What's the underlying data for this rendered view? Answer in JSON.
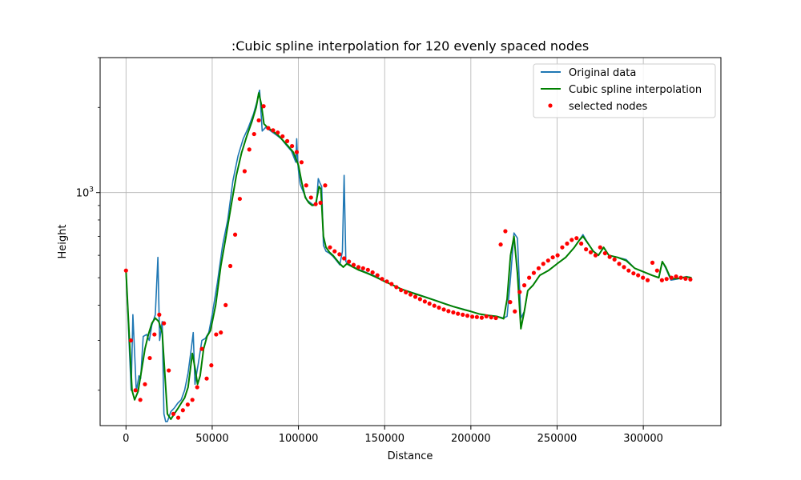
{
  "chart_data": {
    "type": "line",
    "title": ":Cubic spline interpolation for 120 evenly spaced nodes",
    "xlabel": "Distance",
    "ylabel": "Height",
    "xlim": [
      -15000,
      345000
    ],
    "ylim": [
      150,
      3000
    ],
    "yscale": "log",
    "grid": true,
    "legend_position": "top-right",
    "x_ticks": [
      0,
      50000,
      100000,
      150000,
      200000,
      250000,
      300000
    ],
    "x_tick_labels": [
      "0",
      "50000",
      "100000",
      "150000",
      "200000",
      "250000",
      "300000"
    ],
    "y_ticks_major": [
      1000
    ],
    "y_tick_labels": [
      "10^3"
    ],
    "series": [
      {
        "name": "Original data",
        "kind": "line",
        "color": "#1f77b4",
        "x": [
          0,
          3000,
          4000,
          6000,
          7500,
          8500,
          10000,
          12000,
          13500,
          15000,
          17000,
          18500,
          19500,
          21000,
          22000,
          23000,
          24000,
          26000,
          28000,
          30000,
          32000,
          34000,
          36000,
          38000,
          39000,
          40000,
          41000,
          42000,
          44000,
          46000,
          48000,
          50000,
          53000,
          56000,
          59000,
          62000,
          65000,
          68000,
          71000,
          74000,
          76000,
          77000,
          77500,
          79000,
          81000,
          84000,
          87000,
          90000,
          93000,
          96000,
          98500,
          99000,
          99500,
          100000,
          101000,
          103000,
          105000,
          107000,
          109000,
          110500,
          111500,
          112500,
          113500,
          114500,
          116000,
          118000,
          120000,
          122000,
          124000,
          125500,
          126500,
          127500,
          129000,
          132000,
          135000,
          140000,
          145000,
          150000,
          155000,
          160000,
          165000,
          170000,
          175000,
          180000,
          185000,
          190000,
          195000,
          200000,
          205000,
          210000,
          215000,
          219000,
          221000,
          223000,
          225000,
          227000,
          229000,
          231000,
          233000,
          236000,
          240000,
          245000,
          250000,
          255000,
          260000,
          263000,
          265000,
          268000,
          271000,
          274000,
          277000,
          280000,
          285000,
          290000,
          295000,
          300000,
          305000,
          309000,
          311000,
          313000,
          316000,
          320000,
          325000,
          328000
        ],
        "y": [
          530,
          200,
          370,
          198,
          225,
          220,
          310,
          315,
          300,
          340,
          370,
          590,
          300,
          350,
          165,
          155,
          155,
          168,
          173,
          180,
          185,
          200,
          230,
          285,
          320,
          210,
          230,
          250,
          300,
          305,
          320,
          370,
          480,
          650,
          800,
          1100,
          1350,
          1550,
          1700,
          1900,
          2100,
          2250,
          2300,
          1650,
          1700,
          1650,
          1600,
          1550,
          1470,
          1400,
          1280,
          1550,
          1300,
          1200,
          1070,
          1000,
          940,
          920,
          900,
          920,
          1120,
          1080,
          1050,
          650,
          620,
          610,
          595,
          575,
          555,
          620,
          1150,
          570,
          560,
          545,
          535,
          520,
          505,
          485,
          470,
          455,
          445,
          435,
          425,
          415,
          405,
          395,
          388,
          380,
          372,
          368,
          365,
          360,
          365,
          500,
          720,
          690,
          360,
          380,
          450,
          470,
          510,
          530,
          560,
          590,
          640,
          680,
          710,
          660,
          620,
          600,
          640,
          600,
          590,
          580,
          540,
          525,
          510,
          500,
          570,
          540,
          490,
          495,
          505,
          500
        ]
      },
      {
        "name": "Cubic spline interpolation",
        "kind": "line",
        "color": "#008000",
        "x": [
          0,
          2000,
          3500,
          5000,
          7000,
          9000,
          11000,
          13000,
          15000,
          17000,
          19000,
          21000,
          22500,
          24000,
          26000,
          28000,
          30000,
          32000,
          34000,
          36000,
          38500,
          40000,
          41500,
          43000,
          45000,
          47000,
          49000,
          52000,
          55000,
          58000,
          61000,
          64000,
          67000,
          70000,
          73000,
          75500,
          77000,
          78500,
          80000,
          82000,
          85000,
          88000,
          91000,
          94000,
          97000,
          100000,
          102000,
          104000,
          106000,
          108000,
          110000,
          112000,
          113000,
          114500,
          116000,
          118000,
          120000,
          122000,
          124000,
          126000,
          128000,
          131000,
          135000,
          140000,
          145000,
          150000,
          155000,
          160000,
          165000,
          170000,
          175000,
          180000,
          185000,
          190000,
          195000,
          200000,
          205000,
          210000,
          215000,
          219000,
          221000,
          223000,
          225000,
          227000,
          229000,
          231000,
          233000,
          236000,
          240000,
          245000,
          250000,
          255000,
          260000,
          263000,
          265000,
          268000,
          271000,
          274000,
          277000,
          280000,
          285000,
          290000,
          295000,
          300000,
          305000,
          309000,
          311000,
          313000,
          316000,
          320000,
          325000,
          328000
        ],
        "y": [
          530,
          300,
          200,
          185,
          198,
          235,
          280,
          315,
          345,
          360,
          350,
          320,
          230,
          165,
          158,
          165,
          172,
          180,
          188,
          205,
          270,
          240,
          210,
          225,
          280,
          310,
          325,
          400,
          550,
          700,
          900,
          1150,
          1380,
          1580,
          1780,
          2000,
          2250,
          2050,
          1750,
          1700,
          1650,
          1600,
          1530,
          1460,
          1390,
          1250,
          1080,
          960,
          920,
          900,
          910,
          1050,
          1030,
          700,
          640,
          615,
          600,
          580,
          560,
          545,
          560,
          548,
          532,
          518,
          502,
          485,
          470,
          455,
          444,
          434,
          424,
          414,
          404,
          395,
          387,
          380,
          372,
          368,
          365,
          358,
          420,
          600,
          700,
          520,
          330,
          380,
          450,
          470,
          510,
          530,
          560,
          590,
          640,
          680,
          700,
          660,
          620,
          600,
          640,
          600,
          590,
          575,
          540,
          525,
          510,
          500,
          570,
          545,
          495,
          497,
          503,
          500
        ]
      },
      {
        "name": "selected nodes",
        "kind": "scatter",
        "color": "#ff0000",
        "x": [
          0,
          2800,
          5500,
          8300,
          11000,
          13800,
          16500,
          19300,
          22000,
          24800,
          27500,
          30300,
          33000,
          35800,
          38500,
          41300,
          44000,
          46800,
          49500,
          52300,
          55000,
          57800,
          60500,
          63300,
          66000,
          68800,
          71500,
          74300,
          77000,
          79800,
          82500,
          85300,
          88000,
          90800,
          93500,
          96300,
          99000,
          101800,
          104500,
          107300,
          110000,
          112800,
          115500,
          118300,
          121000,
          123800,
          126500,
          129300,
          132000,
          134800,
          137500,
          140300,
          143000,
          145800,
          148500,
          151300,
          154000,
          156800,
          159500,
          162300,
          165000,
          167800,
          170500,
          173300,
          176000,
          178800,
          181500,
          184300,
          187000,
          189800,
          192500,
          195300,
          198000,
          200800,
          203500,
          206300,
          209000,
          211800,
          214500,
          217300,
          220000,
          222800,
          225500,
          228300,
          231000,
          233800,
          236500,
          239300,
          242000,
          244800,
          247500,
          250300,
          253000,
          255800,
          258500,
          261300,
          264000,
          266800,
          269500,
          272300,
          275000,
          277800,
          280500,
          283300,
          286000,
          288800,
          291500,
          294300,
          297000,
          299800,
          302500,
          305300,
          308000,
          310800,
          313500,
          316300,
          319000,
          321800,
          324500,
          327300
        ],
        "y": [
          530,
          300,
          200,
          185,
          210,
          260,
          315,
          370,
          345,
          235,
          165,
          160,
          170,
          178,
          185,
          205,
          280,
          220,
          245,
          315,
          320,
          400,
          550,
          710,
          950,
          1190,
          1420,
          1610,
          1800,
          2020,
          1690,
          1660,
          1630,
          1580,
          1520,
          1460,
          1390,
          1280,
          1060,
          960,
          910,
          920,
          1060,
          640,
          620,
          605,
          585,
          570,
          555,
          545,
          540,
          533,
          522,
          510,
          495,
          485,
          475,
          463,
          452,
          444,
          436,
          428,
          420,
          412,
          405,
          398,
          392,
          386,
          381,
          377,
          373,
          370,
          367,
          364,
          363,
          361,
          365,
          362,
          360,
          655,
          730,
          410,
          380,
          445,
          470,
          500,
          520,
          540,
          560,
          575,
          590,
          600,
          640,
          660,
          680,
          690,
          660,
          630,
          615,
          600,
          640,
          610,
          592,
          580,
          560,
          545,
          530,
          518,
          510,
          500,
          490,
          565,
          530,
          490,
          495,
          500,
          505,
          500,
          496,
          493
        ]
      }
    ]
  }
}
